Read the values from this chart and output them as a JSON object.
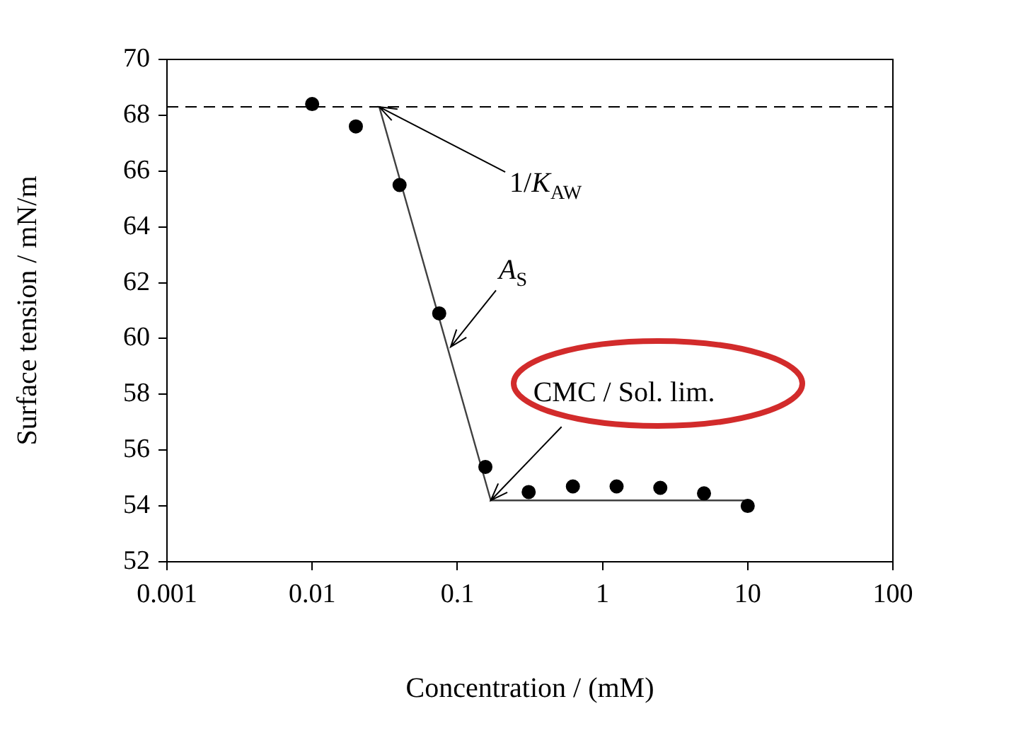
{
  "chart_data": {
    "type": "scatter",
    "xlabel": "Concentration / (mM)",
    "ylabel": "Surface tension / mN/m",
    "log": "x",
    "xlim": [
      0.001,
      100
    ],
    "xticks": [
      0.001,
      0.01,
      0.1,
      1,
      10,
      100
    ],
    "ylim": [
      52,
      70
    ],
    "yticks": [
      52,
      54,
      56,
      58,
      60,
      62,
      64,
      66,
      68,
      70
    ],
    "grid": false,
    "legend": false,
    "marker": "circle",
    "series": [
      {
        "color": "#000000",
        "x": [
          0.01,
          0.02,
          0.04,
          0.075,
          0.156,
          0.31,
          0.625,
          1.25,
          2.5,
          5,
          10
        ],
        "values": [
          68.4,
          67.6,
          65.5,
          60.9,
          55.4,
          54.5,
          54.7,
          54.7,
          54.65,
          54.45,
          54.0
        ]
      },
      {
        "type": "line",
        "color": "#404040",
        "marker": "none",
        "line_style": "solid",
        "x": [
          0.029,
          0.17,
          10
        ],
        "values": [
          68.3,
          54.2,
          54.2
        ]
      }
    ],
    "ref_lines": [
      {
        "axis": "y",
        "value": 68.3,
        "color": "#000000",
        "line_style": "dashed"
      }
    ],
    "annotations": [
      {
        "text": "1/K$_{AW}$",
        "x": 0.029,
        "y": 68.3
      },
      {
        "text": "A$_{S}$",
        "x": 0.09,
        "y": 59.7
      },
      {
        "text": "CMC / Sol. lim.",
        "x": 0.17,
        "y": 54.2
      }
    ]
  }
}
